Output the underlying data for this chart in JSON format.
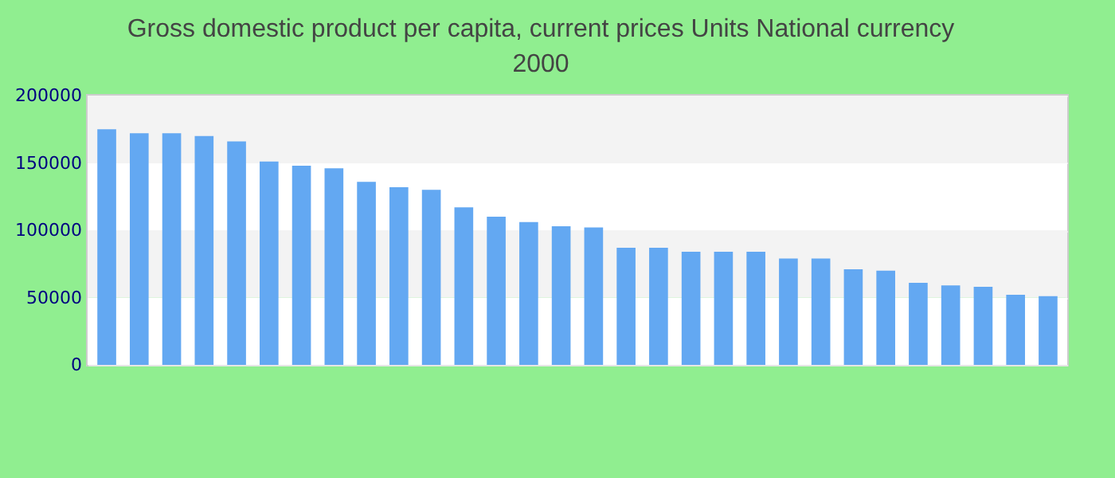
{
  "chart_data": {
    "type": "bar",
    "title": "Gross domestic product per capita, current prices Units National currency",
    "subtitle": "2000",
    "categories": [
      null,
      null,
      null,
      null,
      null,
      null,
      null,
      null,
      null,
      null,
      null,
      null,
      null,
      null,
      null,
      null,
      null,
      null,
      null,
      null,
      null,
      null,
      null,
      null,
      null,
      null,
      null,
      null,
      null,
      null
    ],
    "values": [
      175000,
      172000,
      172000,
      170000,
      166000,
      151000,
      148000,
      146000,
      136000,
      132000,
      130000,
      117000,
      110000,
      106000,
      103000,
      102000,
      87000,
      87000,
      84000,
      84000,
      84000,
      79000,
      79000,
      71000,
      70000,
      61000,
      59000,
      58000,
      52000,
      51000
    ],
    "color": "#63a8f2",
    "ylim": [
      0,
      200000
    ],
    "yticks": [
      0,
      50000,
      100000,
      150000,
      200000
    ],
    "grid": "y"
  }
}
